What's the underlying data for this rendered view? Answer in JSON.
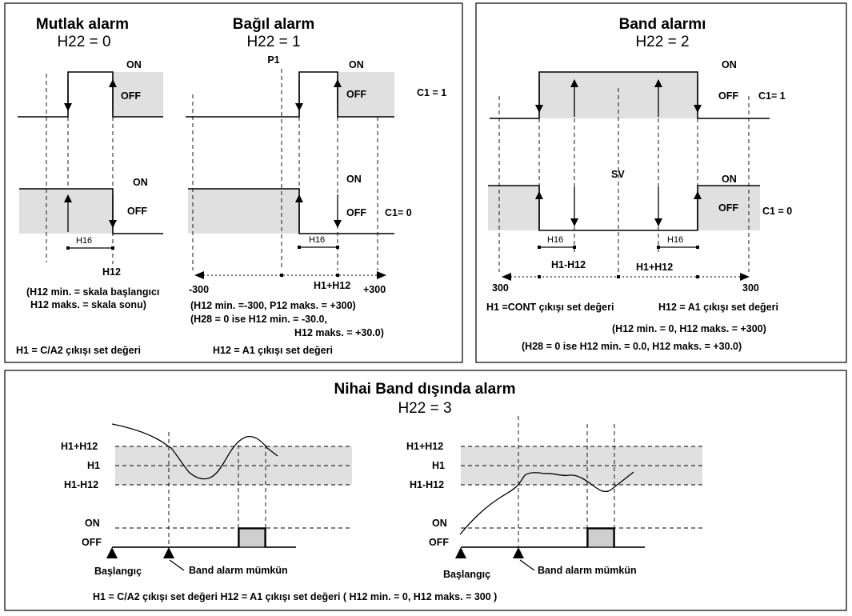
{
  "abs": {
    "title": "Mutlak alarm",
    "sub": "H22 = 0",
    "on": "ON",
    "off": "OFF",
    "h16": "H16",
    "h12": "H12",
    "note1": "(H12 min.  = skala başlangıcı",
    "note2": "H12 maks. = skala sonu)"
  },
  "rel": {
    "title": "Bağıl alarm",
    "sub": "H22 = 1",
    "p1": "P1",
    "on": "ON",
    "off": "OFF",
    "c1_1": "C1 = 1",
    "c1_0": "C1= 0",
    "h16": "H16",
    "neg300": "-300",
    "h1h12": "H1+H12",
    "pos300": "+300",
    "note1": "(H12 min.  =-300, P12 maks. = +300)",
    "note2": "(H28 = 0 ise  H12 min.   = -30.0,",
    "note3": "H12 maks. = +30.0)"
  },
  "left_footer": {
    "a": "H1    = C/A2 çıkışı set değeri",
    "b": "H12 =  A1 çıkışı set değeri"
  },
  "band": {
    "title": "Band alarmı",
    "sub": "H22 = 2",
    "on": "ON",
    "off": "OFF",
    "c1_1": "C1= 1",
    "c1_0": "C1 = 0",
    "sv": "SV",
    "h16": "H16",
    "h1m": "H1-H12",
    "h1p": "H1+H12",
    "s300a": "300",
    "s300b": "300",
    "note1": "H1 =CONT çıkışı set değeri",
    "note2": "H12 = A1 çıkışı set değeri",
    "note3": "(H12 min. = 0,  H12 maks. = +300)",
    "note4": "(H28 = 0 ise  H12 min. = 0.0, H12 maks. = +30.0)"
  },
  "bottom": {
    "title": "Nihai Band dışında alarm",
    "sub": "H22 = 3",
    "hp": "H1+H12",
    "h1": "H1",
    "hm": "H1-H12",
    "on": "ON",
    "off": "OFF",
    "start": "Başlangıç",
    "enable": "Band alarm mümkün",
    "footer": "H1 = C/A2 çıkışı set değeri      H12 = A1 çıkışı set değeri  ( H12 min. = 0,  H12 maks. = 300 )"
  }
}
